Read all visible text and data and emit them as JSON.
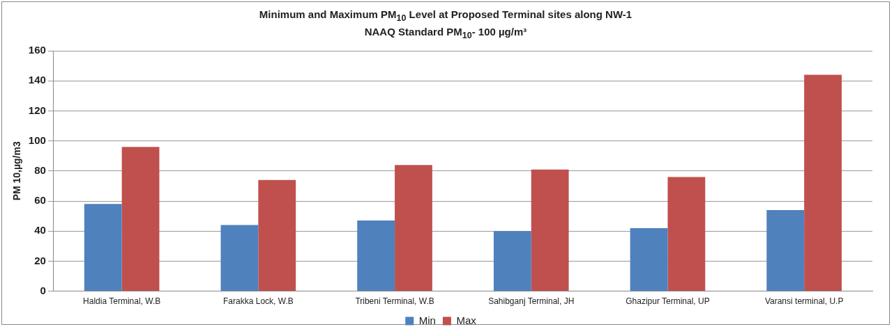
{
  "chart_data": {
    "type": "bar",
    "title": "Minimum and Maximum  PM$_{10}$ Level at Proposed Terminal sites along NW-1",
    "subtitle": "NAAQ Standard PM$_{10}$- 100 µg/m³",
    "ylabel": "PM 10,µg/m3",
    "categories": [
      "Haldia Terminal, W.B",
      "Farakka Lock, W.B",
      "Tribeni Terminal, W.B",
      "Sahibganj Terminal, JH",
      "Ghazipur Terminal, UP",
      "Varansi terminal, U.P"
    ],
    "series": [
      {
        "name": "Min",
        "color": "#4f81bd",
        "values": [
          58,
          44,
          47,
          40,
          42,
          54
        ]
      },
      {
        "name": "Max",
        "color": "#c0504d",
        "values": [
          96,
          74,
          84,
          81,
          76,
          144
        ]
      }
    ],
    "ylim": [
      0,
      160
    ],
    "yticks": [
      0,
      20,
      40,
      60,
      80,
      100,
      120,
      140,
      160
    ],
    "grid": "y",
    "legend": "bottom"
  }
}
